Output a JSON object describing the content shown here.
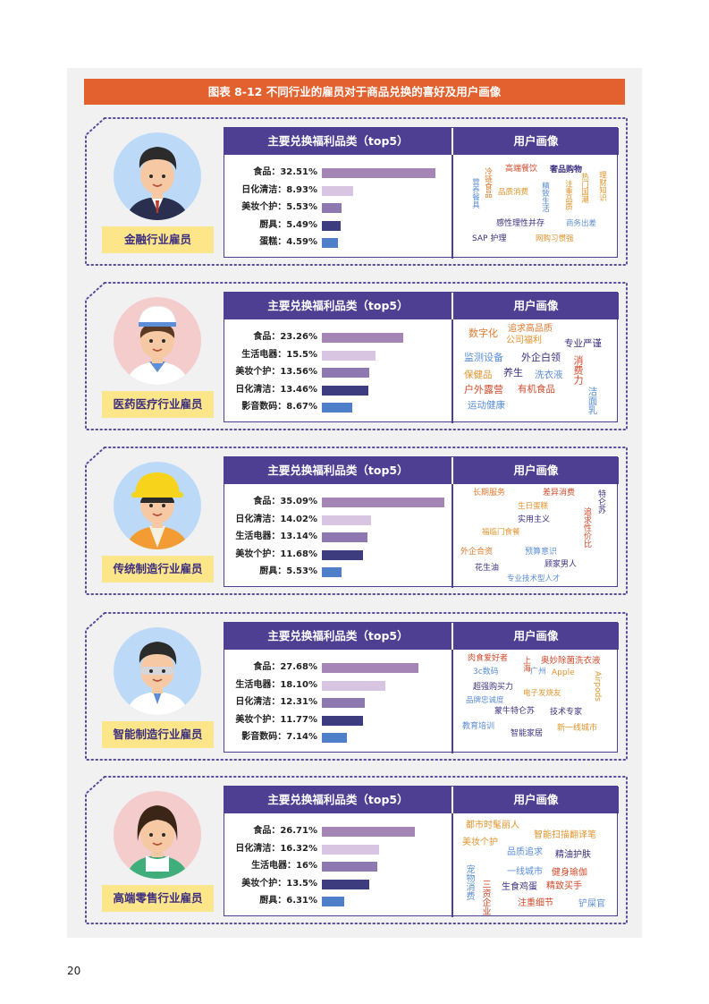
{
  "title": "图表 8-12 不同行业的雇员对于商品兑换的喜好及用户画像",
  "table_headers": {
    "left": "主要兑换福利品类（top5）",
    "right": "用户画像"
  },
  "colors": {
    "banner": "#e2612f",
    "header": "#4e3f93",
    "label_bg": "#fde58a",
    "bar_colors": [
      "#a485b6",
      "#d8c5e2",
      "#8d79b0",
      "#3c3c7e",
      "#4f7fc9"
    ]
  },
  "cards": [
    {
      "role": "金融行业雇员",
      "avatar": "banker",
      "items": [
        {
          "label": "食品：32.51%",
          "value": 32.51
        },
        {
          "label": "日化清洁：8.93%",
          "value": 8.93
        },
        {
          "label": "美妆个护：5.53%",
          "value": 5.53
        },
        {
          "label": "厨具：5.49%",
          "value": 5.49
        },
        {
          "label": "蛋糕：4.59%",
          "value": 4.59
        }
      ],
      "words": [
        {
          "t": "高端餐饮",
          "c": "#d04a2b",
          "s": 9
        },
        {
          "t": "奢品购物",
          "c": "#3d2f80",
          "s": 9,
          "b": true
        },
        {
          "t": "冷链食品",
          "c": "#e07a2e",
          "s": 8.5,
          "v": true
        },
        {
          "t": "营养餐具",
          "c": "#5b8ed6",
          "s": 8.5,
          "v": true
        },
        {
          "t": "精致生活",
          "c": "#5b8ed6",
          "s": 8.5,
          "v": true
        },
        {
          "t": "品质消费",
          "c": "#e0952e",
          "s": 8.5
        },
        {
          "t": "注重品质",
          "c": "#e0952e",
          "s": 8.5,
          "v": true
        },
        {
          "t": "热门国潮",
          "c": "#e0952e",
          "s": 8.5,
          "v": true
        },
        {
          "t": "理财知识",
          "c": "#e0952e",
          "s": 8.5,
          "v": true
        },
        {
          "t": "感性理性并存",
          "c": "#3d2f80",
          "s": 9
        },
        {
          "t": "商务出差",
          "c": "#5b8ed6",
          "s": 8.5
        },
        {
          "t": "SAP 护理",
          "c": "#3d2f80",
          "s": 9
        },
        {
          "t": "网购习惯强",
          "c": "#e0952e",
          "s": 8.5
        }
      ]
    },
    {
      "role": "医药医疗行业雇员",
      "avatar": "nurse",
      "items": [
        {
          "label": "食品：23.26%",
          "value": 23.26
        },
        {
          "label": "生活电器：15.5%",
          "value": 15.5
        },
        {
          "label": "美妆个护：13.56%",
          "value": 13.56
        },
        {
          "label": "日化清洁：13.46%",
          "value": 13.46
        },
        {
          "label": "影音数码：8.67%",
          "value": 8.67
        }
      ],
      "words": [
        {
          "t": "数字化",
          "c": "#e07a2e",
          "s": 11
        },
        {
          "t": "追求高品质",
          "c": "#e07a2e",
          "s": 10
        },
        {
          "t": "公司福利",
          "c": "#e0952e",
          "s": 10
        },
        {
          "t": "专业严谨",
          "c": "#3d2f80",
          "s": 10.5
        },
        {
          "t": "监测设备",
          "c": "#5b8ed6",
          "s": 11
        },
        {
          "t": "外企白领",
          "c": "#3d2f80",
          "s": 11
        },
        {
          "t": "消费力",
          "c": "#d04a2b",
          "s": 11,
          "v": true
        },
        {
          "t": "保健品",
          "c": "#e0952e",
          "s": 10.5
        },
        {
          "t": "养生",
          "c": "#3d2f80",
          "s": 11
        },
        {
          "t": "洗衣液",
          "c": "#5b8ed6",
          "s": 10.5
        },
        {
          "t": "户外露营",
          "c": "#d04a2b",
          "s": 11
        },
        {
          "t": "有机食品",
          "c": "#d04a2b",
          "s": 10.5
        },
        {
          "t": "洁面乳",
          "c": "#5b8ed6",
          "s": 10.5,
          "v": true
        },
        {
          "t": "运动健康",
          "c": "#5b8ed6",
          "s": 10.5
        }
      ]
    },
    {
      "role": "传统制造行业雇员",
      "avatar": "worker",
      "items": [
        {
          "label": "食品：35.09%",
          "value": 35.09
        },
        {
          "label": "日化清洁：14.02%",
          "value": 14.02
        },
        {
          "label": "生活电器：13.14%",
          "value": 13.14
        },
        {
          "label": "美妆个护：11.68%",
          "value": 11.68
        },
        {
          "label": "厨具：5.53%",
          "value": 5.53
        }
      ],
      "words": [
        {
          "t": "长期服务",
          "c": "#e07a2e",
          "s": 9
        },
        {
          "t": "差异消费",
          "c": "#d04a2b",
          "s": 9
        },
        {
          "t": "特仑苏",
          "c": "#3d2f80",
          "s": 9,
          "v": true
        },
        {
          "t": "生日蛋糕",
          "c": "#e0952e",
          "s": 8.5
        },
        {
          "t": "实用主义",
          "c": "#3d2f80",
          "s": 9
        },
        {
          "t": "追求性价比",
          "c": "#d04a2b",
          "s": 9,
          "v": true
        },
        {
          "t": "福临门食餐",
          "c": "#e0952e",
          "s": 8.5
        },
        {
          "t": "外企合资",
          "c": "#e07a2e",
          "s": 9
        },
        {
          "t": "预算意识",
          "c": "#5b8ed6",
          "s": 9
        },
        {
          "t": "顾家男人",
          "c": "#3d2f80",
          "s": 9
        },
        {
          "t": "花生油",
          "c": "#3d2f80",
          "s": 9
        },
        {
          "t": "专业技术型人才",
          "c": "#5b8ed6",
          "s": 8.5
        }
      ]
    },
    {
      "role": "智能制造行业雇员",
      "avatar": "engineer",
      "items": [
        {
          "label": "食品：27.68%",
          "value": 27.68
        },
        {
          "label": "生活电器：18.10%",
          "value": 18.1
        },
        {
          "label": "日化清洁：12.31%",
          "value": 12.31
        },
        {
          "label": "美妆个护：11.77%",
          "value": 11.77
        },
        {
          "label": "影音数码：7.14%",
          "value": 7.14
        }
      ],
      "words": [
        {
          "t": "肉食爱好者",
          "c": "#d04a2b",
          "s": 9
        },
        {
          "t": "上海",
          "c": "#d04a2b",
          "s": 9,
          "v": true
        },
        {
          "t": "奥妙除菌洗衣液",
          "c": "#d04a2b",
          "s": 9.5
        },
        {
          "t": "3c数码",
          "c": "#5b8ed6",
          "s": 9
        },
        {
          "t": "广州",
          "c": "#5b8ed6",
          "s": 9
        },
        {
          "t": "Apple",
          "c": "#e0952e",
          "s": 9
        },
        {
          "t": "Airpods",
          "c": "#e0952e",
          "s": 9,
          "v": true
        },
        {
          "t": "超强购买力",
          "c": "#3d2f80",
          "s": 9
        },
        {
          "t": "电子发烧友",
          "c": "#e0952e",
          "s": 8.5
        },
        {
          "t": "品牌忠诚度",
          "c": "#5b8ed6",
          "s": 8.5
        },
        {
          "t": "蒙牛特仑苏",
          "c": "#3d2f80",
          "s": 9
        },
        {
          "t": "技术专家",
          "c": "#3d2f80",
          "s": 9
        },
        {
          "t": "教育培训",
          "c": "#5b8ed6",
          "s": 9
        },
        {
          "t": "智能家居",
          "c": "#3d2f80",
          "s": 9
        },
        {
          "t": "新一线城市",
          "c": "#e0952e",
          "s": 9
        }
      ]
    },
    {
      "role": "高端零售行业雇员",
      "avatar": "retail",
      "items": [
        {
          "label": "食品：26.71%",
          "value": 26.71
        },
        {
          "label": "日化清洁：16.32%",
          "value": 16.32
        },
        {
          "label": "生活电器：16%",
          "value": 16
        },
        {
          "label": "美妆个护：13.5%",
          "value": 13.5
        },
        {
          "label": "厨具：6.31%",
          "value": 6.31
        }
      ],
      "words": [
        {
          "t": "都市时髦丽人",
          "c": "#e0952e",
          "s": 10
        },
        {
          "t": "美妆个护",
          "c": "#e0952e",
          "s": 10
        },
        {
          "t": "智能扫描翻译笔",
          "c": "#e0952e",
          "s": 10
        },
        {
          "t": "品质追求",
          "c": "#5b8ed6",
          "s": 10
        },
        {
          "t": "精油护肤",
          "c": "#3d2f80",
          "s": 10
        },
        {
          "t": "宠物消费",
          "c": "#5b8ed6",
          "s": 10,
          "v": true
        },
        {
          "t": "三资企业",
          "c": "#d04a2b",
          "s": 10,
          "v": true
        },
        {
          "t": "一线城市",
          "c": "#5b8ed6",
          "s": 10
        },
        {
          "t": "健身瑜伽",
          "c": "#d04a2b",
          "s": 10
        },
        {
          "t": "生食鸡蛋",
          "c": "#3d2f80",
          "s": 10
        },
        {
          "t": "精致买手",
          "c": "#d04a2b",
          "s": 10
        },
        {
          "t": "注重细节",
          "c": "#d04a2b",
          "s": 10
        },
        {
          "t": "铲屎官",
          "c": "#5b8ed6",
          "s": 10
        }
      ]
    }
  ],
  "page_number": "20"
}
